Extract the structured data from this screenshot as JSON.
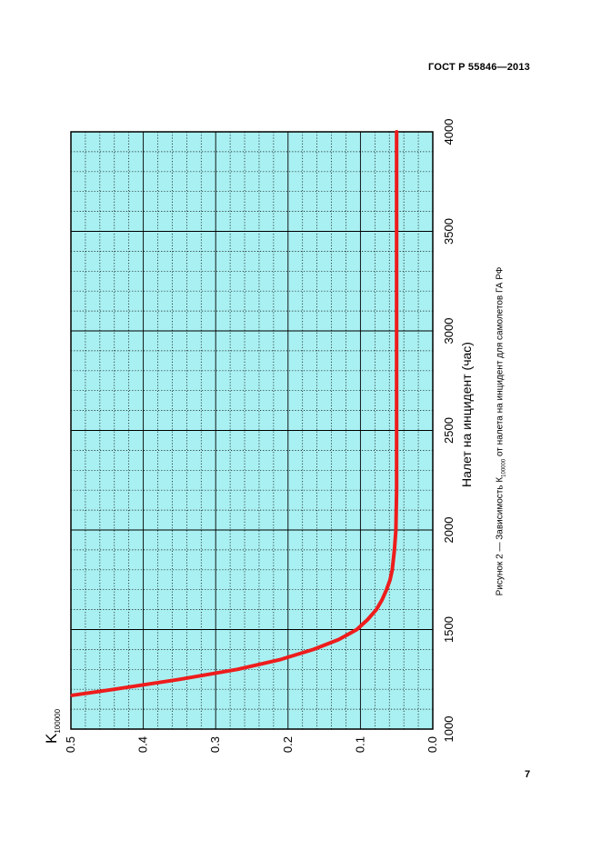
{
  "document": {
    "header": "ГОСТ Р 55846—2013",
    "page_number": "7",
    "caption_before": "Рисунок 2 — Зависимость К",
    "caption_sub": "100000",
    "caption_after": " от налета на инцидент для самолетов ГА РФ"
  },
  "colors": {
    "plot_background": "#a9f0f2",
    "curve": "#ee1c1c",
    "grid": "#000000"
  },
  "chart_data": {
    "type": "line",
    "rotated": "page rotated 90° counter-clockwise",
    "xlabel": "Налет на инцидент (час)",
    "ylabel_main": "K",
    "ylabel_sub": "100000",
    "xlim": [
      1000,
      4000
    ],
    "ylim": [
      0.0,
      0.5
    ],
    "x_ticks": [
      "1000",
      "1500",
      "2000",
      "2500",
      "3000",
      "3500",
      "4000"
    ],
    "y_ticks": [
      "0.0",
      "0.1",
      "0.2",
      "0.3",
      "0.4",
      "0.5"
    ],
    "grid": "major solid, minor dotted",
    "series": [
      {
        "x": [
          1170,
          1200,
          1250,
          1300,
          1350,
          1400,
          1450,
          1500,
          1550,
          1600,
          1650,
          1700,
          1750,
          1800,
          1900,
          2000,
          2200,
          2500,
          3000,
          3500,
          4000
        ],
        "values": [
          0.498,
          0.44,
          0.35,
          0.27,
          0.21,
          0.165,
          0.13,
          0.105,
          0.09,
          0.078,
          0.07,
          0.064,
          0.059,
          0.056,
          0.053,
          0.051,
          0.05,
          0.05,
          0.05,
          0.05,
          0.05
        ]
      }
    ]
  }
}
